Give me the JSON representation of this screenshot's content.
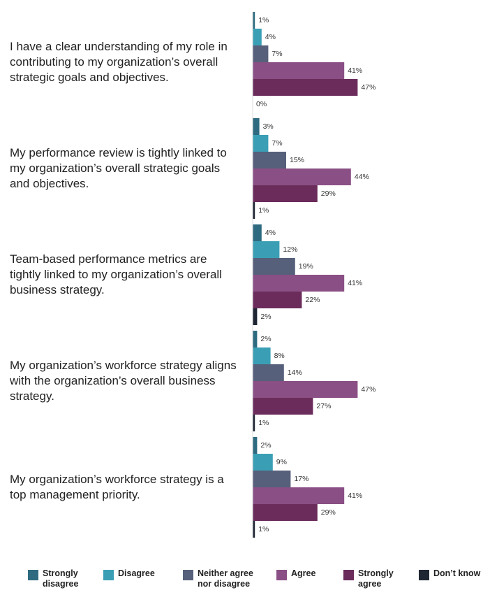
{
  "chart_data": {
    "type": "bar",
    "orientation": "horizontal",
    "categories": [
      "I have a clear understanding of my role in contributing to my organization’s overall strategic goals and objectives.",
      "My performance review is tightly linked to my organization’s overall strategic goals and objectives.",
      "Team-based performance metrics are tightly linked to my organization’s overall business strategy.",
      "My organization’s workforce strategy aligns with the organization’s overall business strategy.",
      "My organization’s workforce strategy is a top management priority."
    ],
    "series": [
      {
        "name": "Strongly disagree",
        "color": "#2e6b80",
        "values": [
          1,
          3,
          4,
          2,
          2
        ],
        "value_labels": [
          "1%",
          "3%",
          "4%",
          "2%",
          "2%"
        ]
      },
      {
        "name": "Disagree",
        "color": "#3a9fb5",
        "values": [
          4,
          7,
          12,
          8,
          9
        ],
        "value_labels": [
          "4%",
          "7%",
          "12%",
          "8%",
          "9%"
        ]
      },
      {
        "name": "Neither agree nor disagree",
        "color": "#56607a",
        "values": [
          7,
          15,
          19,
          14,
          17
        ],
        "value_labels": [
          "7%",
          "15%",
          "19%",
          "14%",
          "17%"
        ]
      },
      {
        "name": "Agree",
        "color": "#8a4f85",
        "values": [
          41,
          44,
          41,
          47,
          41
        ],
        "value_labels": [
          "41%",
          "44%",
          "41%",
          "47%",
          "41%"
        ]
      },
      {
        "name": "Strongly agree",
        "color": "#6b2c5b",
        "values": [
          47,
          29,
          22,
          27,
          29
        ],
        "value_labels": [
          "47%",
          "29%",
          "22%",
          "27%",
          "29%"
        ]
      },
      {
        "name": "Don’t know",
        "color": "#1f2633",
        "values": [
          0,
          1,
          2,
          1,
          1
        ],
        "value_labels": [
          "0%",
          "1%",
          "2%",
          "1%",
          "1%"
        ]
      }
    ],
    "legend": "bottom"
  }
}
